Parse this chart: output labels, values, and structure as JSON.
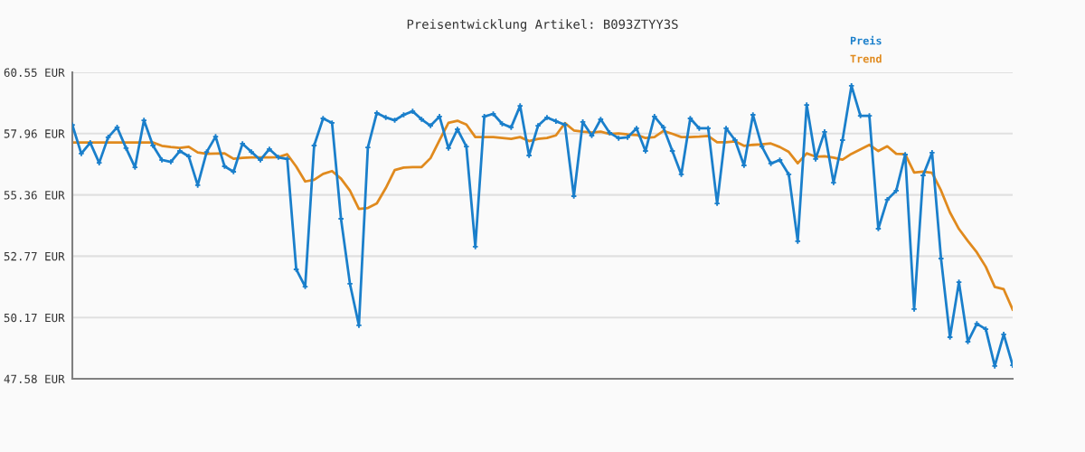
{
  "chart_data": {
    "type": "line",
    "title": "Preisentwicklung Artikel: B093ZTYY3S",
    "categories": [
      null,
      null,
      null,
      null,
      null,
      null,
      null,
      null,
      null,
      null,
      null,
      null,
      null,
      null,
      null,
      null,
      null,
      null,
      null,
      null,
      null,
      null,
      null,
      null,
      null,
      null,
      null,
      null,
      null,
      null,
      null,
      null,
      null,
      null,
      null,
      null,
      null,
      null,
      null,
      null,
      null,
      null,
      null,
      null,
      null,
      null,
      null,
      null,
      null,
      null,
      null,
      null,
      null,
      null,
      null,
      null,
      null,
      null,
      null,
      null,
      null,
      null,
      null,
      null,
      null,
      null,
      null,
      null,
      null,
      null,
      null,
      null,
      null,
      null,
      null,
      null,
      null,
      null,
      null,
      null,
      null,
      null,
      null,
      null,
      null,
      null,
      null,
      null,
      null,
      null,
      null,
      null,
      null,
      null,
      null,
      null,
      null,
      null,
      null,
      null,
      null,
      null,
      null,
      null,
      null,
      null
    ],
    "series": [
      {
        "name": "Preis",
        "color": "#1a7fcb",
        "marker": "cross",
        "values": [
          58.32,
          57.11,
          57.57,
          56.72,
          57.8,
          58.22,
          57.34,
          56.53,
          58.52,
          57.45,
          56.84,
          56.76,
          57.22,
          56.99,
          55.77,
          57.18,
          57.83,
          56.57,
          56.34,
          57.53,
          57.18,
          56.84,
          57.3,
          56.95,
          56.88,
          52.21,
          51.48,
          57.45,
          58.6,
          58.41,
          54.35,
          51.6,
          49.84,
          57.37,
          58.83,
          58.64,
          58.52,
          58.75,
          58.9,
          58.56,
          58.29,
          58.68,
          57.34,
          58.14,
          57.41,
          53.17,
          58.68,
          58.79,
          58.37,
          58.22,
          59.13,
          57.03,
          58.29,
          58.64,
          58.48,
          58.33,
          55.31,
          58.45,
          57.87,
          58.56,
          57.99,
          57.76,
          57.8,
          58.18,
          57.22,
          58.68,
          58.22,
          57.22,
          56.23,
          58.6,
          58.18,
          58.18,
          55.0,
          58.18,
          57.68,
          56.61,
          58.75,
          57.41,
          56.69,
          56.84,
          56.23,
          53.4,
          59.17,
          56.88,
          58.03,
          55.88,
          57.68,
          59.98,
          58.71,
          58.71,
          53.93,
          55.16,
          55.54,
          57.07,
          50.53,
          56.19,
          57.15,
          52.67,
          49.34,
          51.67,
          49.15,
          49.91,
          49.68,
          48.12,
          49.46,
          48.15
        ]
      },
      {
        "name": "Trend",
        "color": "#e08a1e",
        "marker": "none",
        "values": [
          57.58,
          57.58,
          57.58,
          57.58,
          57.58,
          57.58,
          57.58,
          57.58,
          57.58,
          57.58,
          57.44,
          57.39,
          57.35,
          57.4,
          57.16,
          57.1,
          57.11,
          57.12,
          56.89,
          56.93,
          56.95,
          56.95,
          56.95,
          56.96,
          57.08,
          56.56,
          55.93,
          56.0,
          56.25,
          56.37,
          56.05,
          55.54,
          54.77,
          54.81,
          55.0,
          55.65,
          56.41,
          56.52,
          56.54,
          56.54,
          56.92,
          57.68,
          58.41,
          58.5,
          58.34,
          57.81,
          57.81,
          57.81,
          57.77,
          57.73,
          57.81,
          57.64,
          57.73,
          57.77,
          57.88,
          58.4,
          58.09,
          58.04,
          58.0,
          58.04,
          57.94,
          57.96,
          57.92,
          57.9,
          57.77,
          57.81,
          58.07,
          57.95,
          57.81,
          57.81,
          57.83,
          57.86,
          57.59,
          57.59,
          57.63,
          57.44,
          57.48,
          57.5,
          57.54,
          57.39,
          57.18,
          56.7,
          57.12,
          56.98,
          57.0,
          56.94,
          56.85,
          57.1,
          57.29,
          57.48,
          57.22,
          57.42,
          57.1,
          57.08,
          56.31,
          56.35,
          56.3,
          55.55,
          54.62,
          53.92,
          53.41,
          52.93,
          52.32,
          51.47,
          51.37,
          50.51
        ]
      }
    ],
    "ylim": [
      47.58,
      60.55
    ],
    "yticks": [
      {
        "value": 47.58,
        "label": "47.58 EUR"
      },
      {
        "value": 50.17,
        "label": "50.17 EUR"
      },
      {
        "value": 52.77,
        "label": "52.77 EUR"
      },
      {
        "value": 55.36,
        "label": "55.36 EUR"
      },
      {
        "value": 57.96,
        "label": "57.96 EUR"
      },
      {
        "value": 60.55,
        "label": "60.55 EUR"
      }
    ],
    "tick_labels": "y",
    "grid": "y",
    "legend": "top right"
  }
}
